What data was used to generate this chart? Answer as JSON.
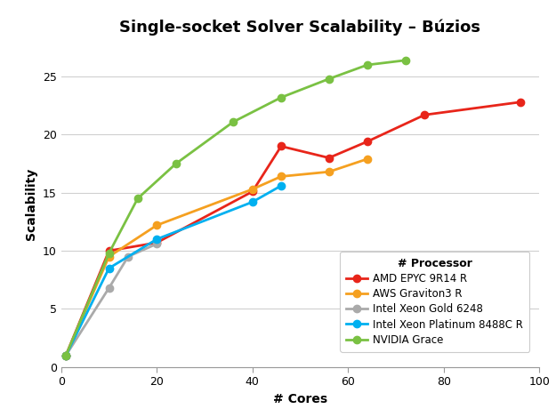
{
  "title": "Single-socket Solver Scalability – Búzios",
  "xlabel": "# Cores",
  "ylabel": "Scalability",
  "legend_title": "# Processor",
  "xlim": [
    0,
    100
  ],
  "ylim": [
    0,
    28
  ],
  "yticks": [
    0,
    5,
    10,
    15,
    20,
    25
  ],
  "xticks": [
    0,
    20,
    40,
    60,
    80,
    100
  ],
  "background_color": "#ffffff",
  "grid_color": "#d0d0d0",
  "title_fontsize": 13,
  "axis_label_fontsize": 10,
  "tick_fontsize": 9,
  "legend_fontsize": 8.5,
  "legend_title_fontsize": 9,
  "series": [
    {
      "label": "AMD EPYC 9R14 R",
      "color": "#e8251a",
      "x": [
        1,
        10,
        20,
        40,
        46,
        56,
        64,
        76,
        96
      ],
      "y": [
        1.0,
        10.0,
        10.7,
        15.1,
        19.0,
        18.0,
        19.4,
        21.7,
        22.8
      ]
    },
    {
      "label": "AWS Graviton3 R",
      "color": "#f5a020",
      "x": [
        1,
        10,
        20,
        40,
        46,
        56,
        64
      ],
      "y": [
        1.0,
        9.5,
        12.2,
        15.3,
        16.4,
        16.8,
        17.9
      ]
    },
    {
      "label": "Intel Xeon Gold 6248",
      "color": "#aaaaaa",
      "x": [
        1,
        10,
        14,
        20
      ],
      "y": [
        1.0,
        6.8,
        9.5,
        10.6
      ]
    },
    {
      "label": "Intel Xeon Platinum 8488C R",
      "color": "#00b0f0",
      "x": [
        1,
        10,
        20,
        40,
        46
      ],
      "y": [
        1.0,
        8.5,
        11.0,
        14.2,
        15.6
      ]
    },
    {
      "label": "NVIDIA Grace",
      "color": "#7ac143",
      "x": [
        1,
        10,
        16,
        24,
        36,
        46,
        56,
        64,
        72
      ],
      "y": [
        1.0,
        9.8,
        14.5,
        17.5,
        21.1,
        23.2,
        24.8,
        26.0,
        26.4
      ]
    }
  ]
}
